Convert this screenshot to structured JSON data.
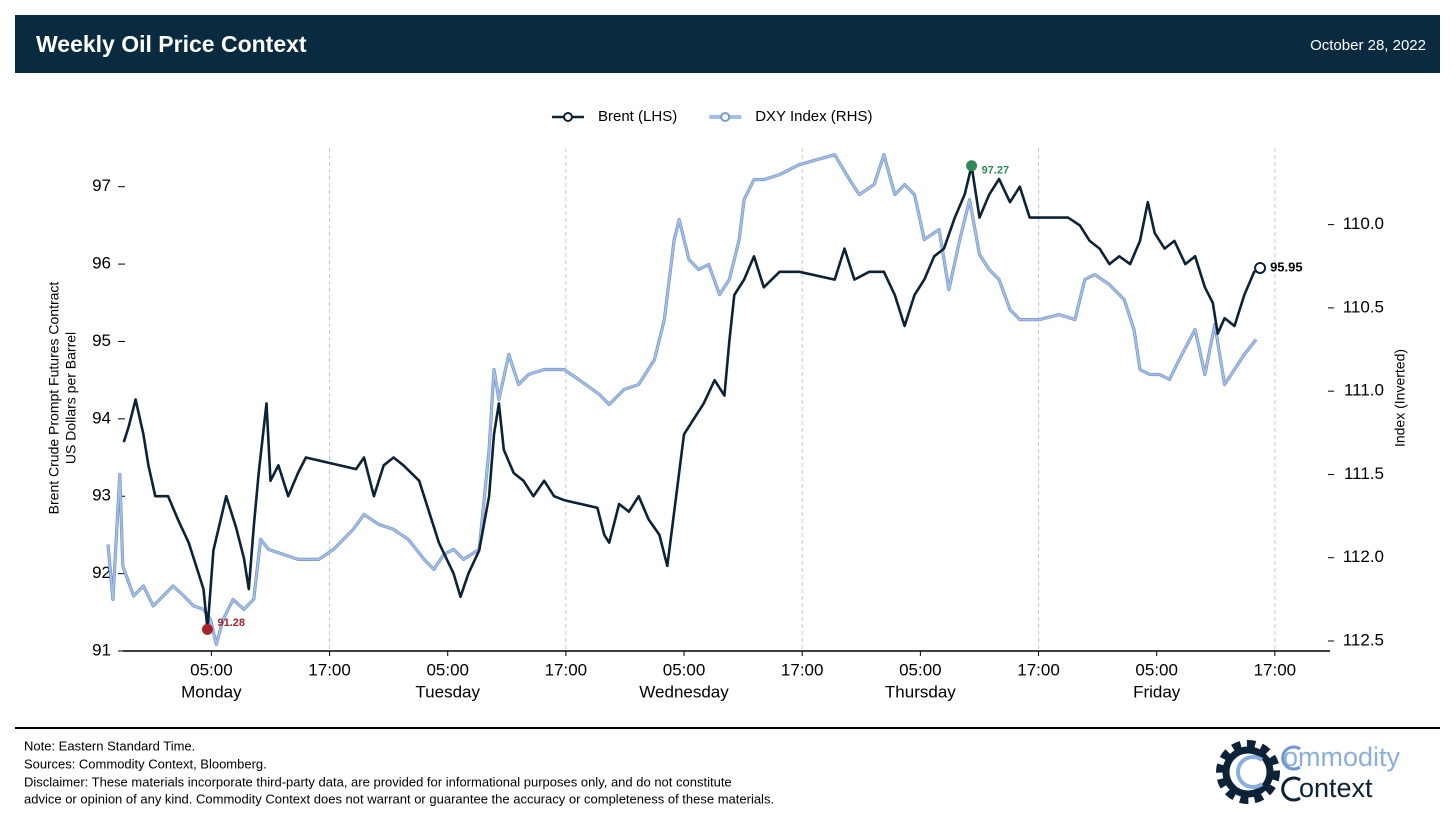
{
  "chart_data": {
    "type": "line",
    "title": "Weekly Oil Price Context",
    "date": "October 28, 2022",
    "ylabel": [
      "Brent Crude Prompt Futures Contract",
      "US Dollars per Barrel"
    ],
    "y2label": "Index (Inverted)",
    "xlim": [
      -5.5,
      118.6
    ],
    "xticks": [
      {
        "value": 5,
        "label": "05:00",
        "day": "Monday"
      },
      {
        "value": 17,
        "label": "17:00",
        "grid": true
      },
      {
        "value": 29,
        "label": "05:00",
        "day": "Tuesday"
      },
      {
        "value": 41,
        "label": "17:00",
        "grid": true
      },
      {
        "value": 53,
        "label": "05:00",
        "day": "Wednesday"
      },
      {
        "value": 65,
        "label": "17:00",
        "grid": true
      },
      {
        "value": 77,
        "label": "05:00",
        "day": "Thursday"
      },
      {
        "value": 89,
        "label": "17:00",
        "grid": true
      },
      {
        "value": 101,
        "label": "05:00",
        "day": "Friday"
      },
      {
        "value": 113,
        "label": "17:00",
        "grid": true
      }
    ],
    "ylim": [
      91,
      97.5
    ],
    "yticks": [
      91,
      92,
      93,
      94,
      95,
      96,
      97
    ],
    "y2lim": [
      109.54,
      112.56
    ],
    "y2_inverted": true,
    "y2ticks": [
      {
        "value": 110,
        "label": "110.0"
      },
      {
        "value": 110.5,
        "label": "110.5"
      },
      {
        "value": 111,
        "label": "111.0"
      },
      {
        "value": 111.5,
        "label": "111.5"
      },
      {
        "value": 112,
        "label": "112.0"
      },
      {
        "value": 112.5,
        "label": "112.5"
      }
    ],
    "legend": "top",
    "series": [
      {
        "name": "Brent (LHS)",
        "color": "#0c2236",
        "axis": "y",
        "highlight": {
          "min": "#a3242b",
          "max": "#2e8b57",
          "last": "#ffffff"
        },
        "x": [
          -3.9,
          -3.4,
          -2.7,
          -1.9,
          -1.4,
          -0.7,
          0.6,
          1.6,
          2.7,
          3.7,
          4.2,
          4.6,
          5.2,
          6.5,
          7.5,
          8.3,
          8.8,
          9.3,
          9.8,
          10.6,
          11.0,
          11.8,
          12.8,
          13.8,
          14.6,
          19.7,
          20.5,
          21.5,
          22.5,
          23.5,
          24.5,
          26.1,
          27.1,
          28.1,
          29.6,
          30.3,
          31.1,
          32.2,
          33.2,
          33.7,
          34.2,
          34.7,
          35.7,
          36.7,
          37.7,
          38.8,
          39.8,
          40.8,
          44.2,
          44.9,
          45.4,
          46.4,
          47.4,
          48.4,
          49.4,
          50.5,
          51.3,
          52.0,
          53.0,
          54.0,
          55.0,
          56.1,
          57.1,
          57.6,
          58.1,
          59.1,
          60.1,
          61.1,
          62.7,
          64.7,
          68.3,
          69.3,
          70.3,
          71.8,
          73.3,
          74.4,
          75.4,
          76.4,
          77.4,
          78.4,
          79.4,
          80.5,
          81.5,
          82.2,
          83.0,
          84.0,
          85.0,
          86.1,
          87.1,
          88.1,
          92.0,
          93.2,
          94.2,
          95.2,
          96.2,
          97.2,
          98.3,
          99.3,
          100.1,
          100.8,
          101.8,
          102.8,
          103.9,
          104.9,
          105.9,
          106.7,
          107.2,
          107.9,
          108.9,
          109.9,
          110.9,
          111.5
        ],
        "values": [
          93.7,
          93.9,
          94.25,
          93.8,
          93.4,
          93.0,
          93.0,
          92.7,
          92.4,
          92.0,
          91.8,
          91.28,
          92.3,
          93.0,
          92.6,
          92.2,
          91.8,
          92.6,
          93.3,
          94.2,
          93.2,
          93.4,
          93.0,
          93.3,
          93.5,
          93.35,
          93.5,
          93.0,
          93.4,
          93.5,
          93.4,
          93.2,
          92.8,
          92.4,
          92.0,
          91.7,
          92.0,
          92.3,
          93.0,
          93.8,
          94.2,
          93.6,
          93.3,
          93.2,
          93.0,
          93.2,
          93.0,
          92.95,
          92.85,
          92.5,
          92.4,
          92.9,
          92.8,
          93.0,
          92.7,
          92.5,
          92.1,
          92.8,
          93.8,
          94.0,
          94.2,
          94.5,
          94.3,
          95.0,
          95.6,
          95.8,
          96.1,
          95.7,
          95.9,
          95.9,
          95.8,
          96.2,
          95.8,
          95.9,
          95.9,
          95.6,
          95.2,
          95.6,
          95.8,
          96.1,
          96.2,
          96.6,
          96.9,
          97.27,
          96.6,
          96.9,
          97.1,
          96.8,
          97.0,
          96.6,
          96.6,
          96.5,
          96.3,
          96.2,
          96.0,
          96.1,
          96.0,
          96.3,
          96.8,
          96.4,
          96.2,
          96.3,
          96.0,
          96.1,
          95.7,
          95.5,
          95.1,
          95.3,
          95.2,
          95.6,
          95.9,
          95.95
        ]
      },
      {
        "name": "DXY Index (RHS)",
        "color": "#a3bfe9",
        "axis": "y2",
        "x": [
          -5.5,
          -5.0,
          -4.3,
          -4.0,
          -2.9,
          -1.9,
          -0.9,
          0.1,
          1.1,
          2.2,
          3.2,
          4.2,
          4.9,
          5.5,
          6.2,
          7.2,
          8.3,
          9.3,
          10.0,
          10.8,
          12.3,
          13.8,
          15.9,
          17.4,
          19.4,
          20.5,
          22.0,
          23.5,
          25.0,
          26.6,
          27.6,
          28.6,
          29.6,
          30.6,
          32.2,
          33.2,
          33.7,
          34.2,
          35.2,
          36.2,
          37.2,
          38.8,
          40.8,
          42.3,
          44.4,
          45.4,
          46.9,
          48.4,
          50.0,
          51.0,
          52.0,
          52.5,
          53.5,
          54.5,
          55.5,
          56.6,
          57.6,
          58.6,
          59.1,
          60.1,
          61.1,
          62.7,
          64.7,
          68.3,
          69.8,
          70.8,
          72.3,
          73.3,
          74.4,
          75.4,
          76.4,
          77.4,
          78.9,
          79.9,
          81.0,
          82.0,
          83.0,
          84.0,
          85.0,
          86.1,
          87.1,
          89.1,
          91.1,
          92.7,
          93.7,
          94.7,
          96.2,
          97.7,
          98.7,
          99.3,
          100.3,
          101.3,
          102.3,
          103.3,
          104.9,
          105.9,
          106.9,
          107.9,
          108.9,
          109.9,
          111.1
        ],
        "values": [
          111.92,
          112.25,
          111.5,
          112.05,
          112.23,
          112.17,
          112.29,
          112.23,
          112.17,
          112.23,
          112.29,
          112.31,
          112.37,
          112.52,
          112.37,
          112.25,
          112.31,
          112.25,
          111.89,
          111.95,
          111.98,
          112.01,
          112.01,
          111.95,
          111.83,
          111.74,
          111.8,
          111.83,
          111.89,
          112.01,
          112.07,
          111.98,
          111.95,
          112.01,
          111.95,
          111.35,
          110.87,
          111.05,
          110.78,
          110.96,
          110.9,
          110.87,
          110.87,
          110.93,
          111.02,
          111.08,
          110.99,
          110.96,
          110.81,
          110.57,
          110.09,
          109.97,
          110.21,
          110.27,
          110.24,
          110.42,
          110.33,
          110.09,
          109.85,
          109.73,
          109.73,
          109.7,
          109.64,
          109.58,
          109.73,
          109.82,
          109.76,
          109.58,
          109.82,
          109.76,
          109.82,
          110.09,
          110.03,
          110.39,
          110.09,
          109.85,
          110.18,
          110.27,
          110.33,
          110.51,
          110.57,
          110.57,
          110.54,
          110.57,
          110.33,
          110.3,
          110.36,
          110.45,
          110.63,
          110.87,
          110.9,
          110.9,
          110.93,
          110.81,
          110.63,
          110.9,
          110.6,
          110.96,
          110.87,
          110.78,
          110.69
        ]
      }
    ],
    "footer": {
      "notes": [
        "Note: Eastern Standard Time.",
        "Sources: Commodity Context, Bloomberg.",
        "Disclaimer: These materials incorporate third-party data, are provided for informational purposes only, and do not constitute",
        "advice or opinion of any kind. Commodity Context does not warrant or guarantee the accuracy or completeness of these materials."
      ],
      "logo": [
        "ommodity",
        "ontext"
      ]
    }
  }
}
